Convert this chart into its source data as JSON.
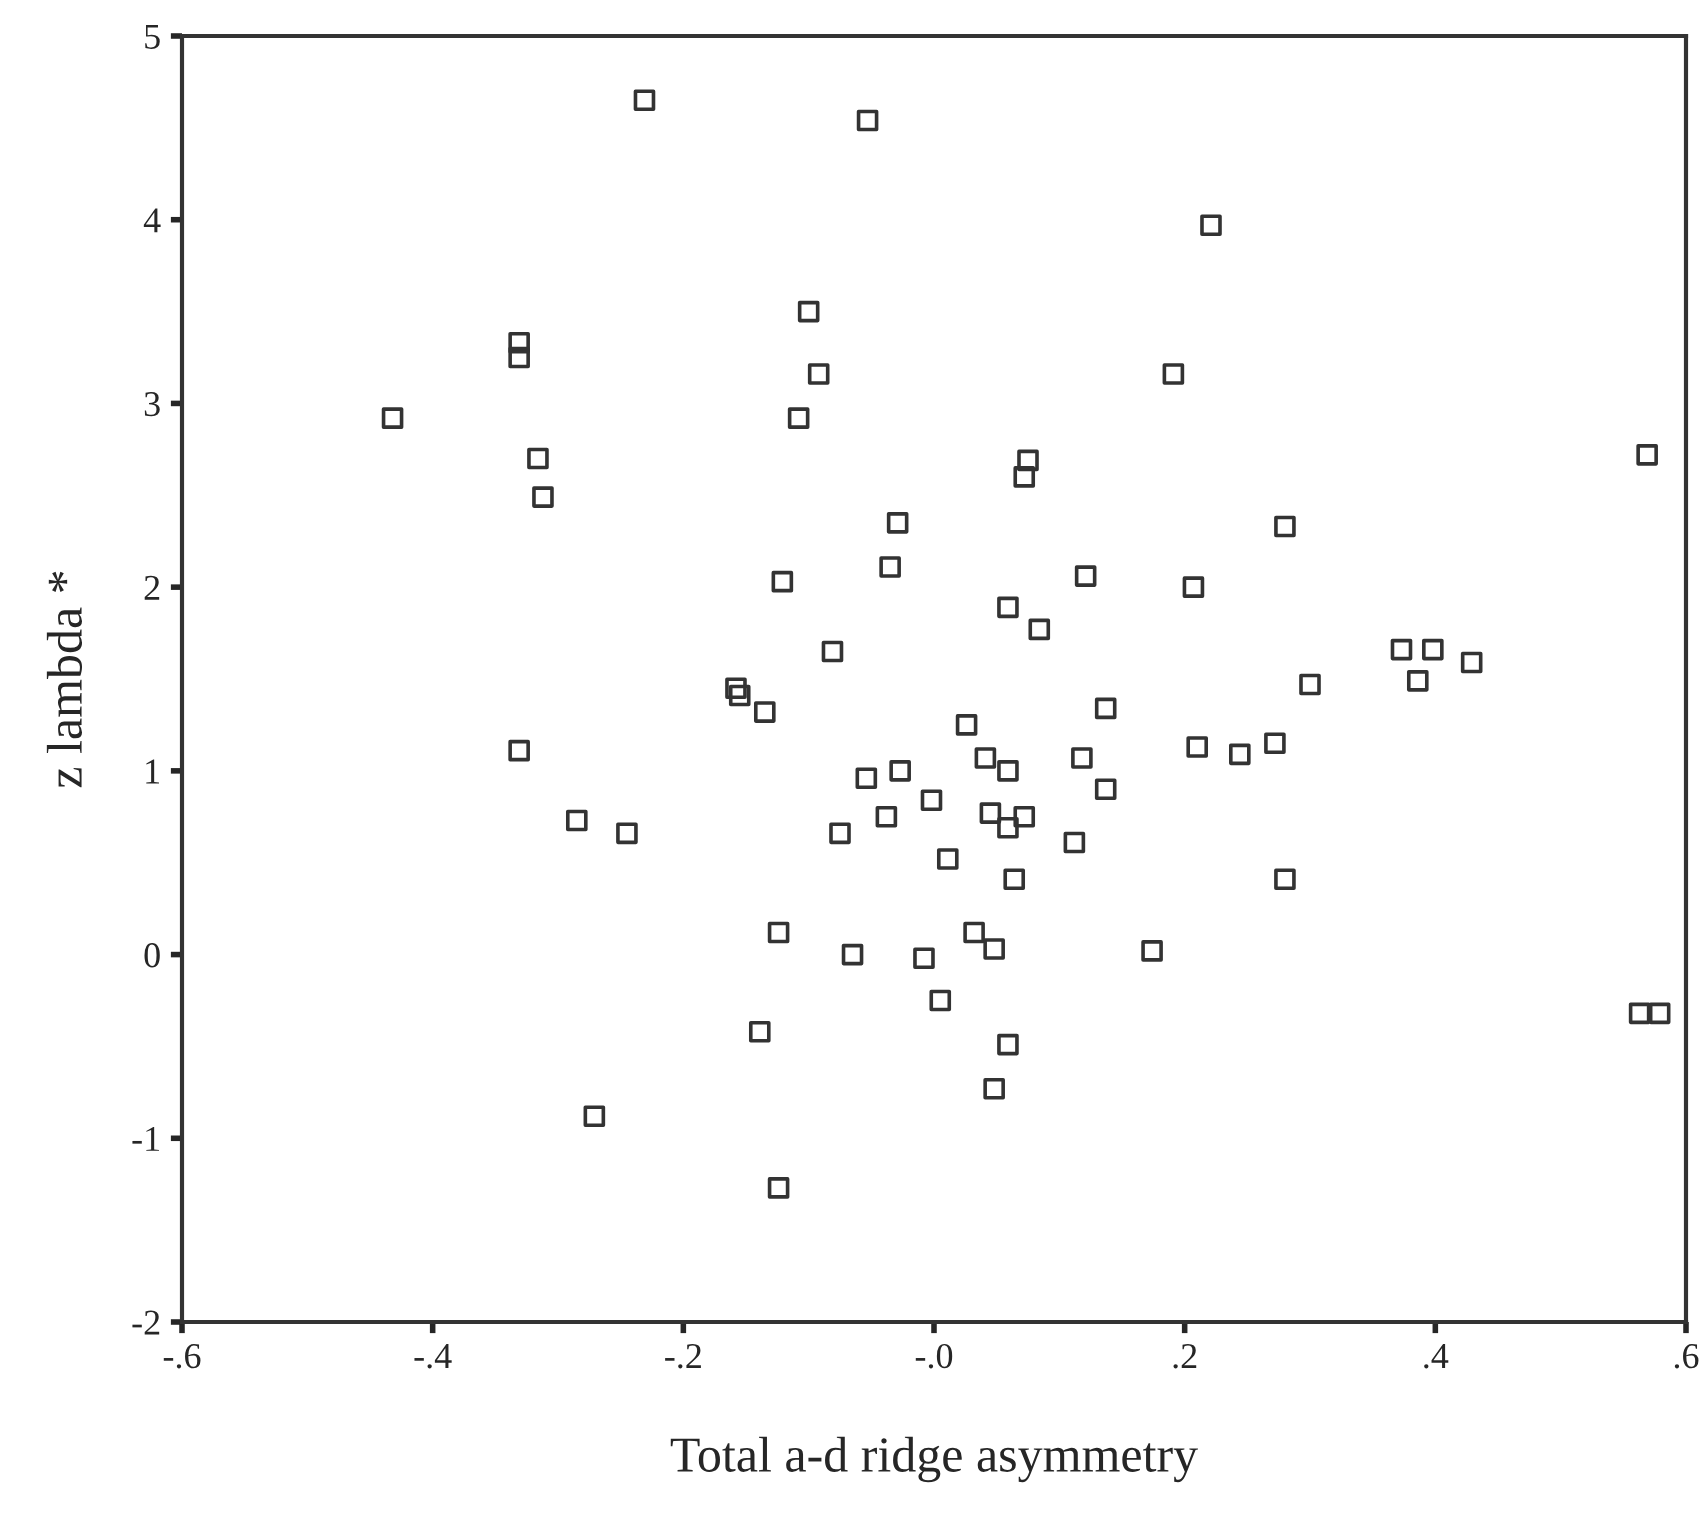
{
  "chart_data": {
    "type": "scatter",
    "xlabel": "Total a-d ridge asymmetry",
    "ylabel": "z lambda *",
    "xlim": [
      -0.6,
      0.6
    ],
    "ylim": [
      -2,
      5
    ],
    "xticks": [
      {
        "value": -0.6,
        "label": "-.6"
      },
      {
        "value": -0.4,
        "label": "-.4"
      },
      {
        "value": -0.2,
        "label": "-.2"
      },
      {
        "value": 0,
        "label": "-.0"
      },
      {
        "value": 0.2,
        "label": ".2"
      },
      {
        "value": 0.4,
        "label": ".4"
      },
      {
        "value": 0.6,
        "label": ".6"
      }
    ],
    "yticks": [
      -2,
      -1,
      0,
      1,
      2,
      3,
      4,
      5
    ],
    "grid": false,
    "marker": "square",
    "series": [
      {
        "color": "#333333",
        "x": [
          -0.231,
          -0.053,
          0.221,
          -0.1,
          -0.331,
          -0.331,
          -0.092,
          0.191,
          -0.432,
          -0.108,
          -0.316,
          -0.312,
          0.075,
          0.072,
          -0.029,
          0.28,
          0.569,
          -0.121,
          -0.035,
          0.121,
          0.207,
          0.059,
          0.084,
          -0.081,
          0.373,
          0.398,
          0.429,
          0.386,
          0.3,
          -0.158,
          -0.155,
          -0.135,
          0.026,
          0.137,
          -0.331,
          -0.054,
          -0.027,
          0.041,
          0.059,
          0.118,
          0.21,
          0.244,
          0.272,
          0.137,
          -0.002,
          0.045,
          0.072,
          0.059,
          -0.038,
          -0.075,
          -0.285,
          -0.245,
          0.112,
          0.011,
          0.064,
          0.28,
          -0.124,
          0.032,
          0.048,
          0.174,
          -0.065,
          -0.008,
          0.005,
          -0.139,
          0.059,
          0.048,
          -0.271,
          -0.124,
          0.563,
          0.579
        ],
        "values": [
          4.65,
          4.54,
          3.97,
          3.5,
          3.33,
          3.25,
          3.16,
          3.16,
          2.92,
          2.92,
          2.7,
          2.49,
          2.69,
          2.6,
          2.35,
          2.33,
          2.72,
          2.03,
          2.11,
          2.06,
          2.0,
          1.89,
          1.77,
          1.65,
          1.66,
          1.66,
          1.59,
          1.49,
          1.47,
          1.45,
          1.41,
          1.32,
          1.25,
          1.34,
          1.11,
          0.96,
          1.0,
          1.07,
          1.0,
          1.07,
          1.13,
          1.09,
          1.15,
          0.9,
          0.84,
          0.77,
          0.75,
          0.69,
          0.75,
          0.66,
          0.73,
          0.66,
          0.61,
          0.52,
          0.41,
          0.41,
          0.12,
          0.12,
          0.03,
          0.02,
          0.0,
          -0.02,
          -0.25,
          -0.42,
          -0.49,
          -0.73,
          -0.88,
          -1.27,
          -0.32,
          -0.32
        ]
      }
    ]
  }
}
